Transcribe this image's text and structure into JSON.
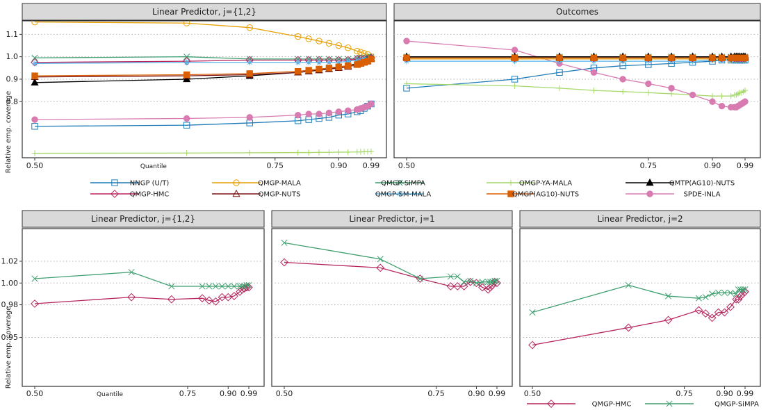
{
  "colors": {
    "NNGP": "#1f7bb8",
    "MALA": "#e69f00",
    "SiMPA": "#3f9f6f",
    "YAMALA": "#a6d96a",
    "QMTP": "#000000",
    "HMC": "#b5245c",
    "NUTS": "#7a1010",
    "SMMALA": "#56b4e9",
    "AG10NUTS": "#d95f02",
    "SPDE": "#d87bb0"
  },
  "chart_data": [
    {
      "type": "line",
      "title": "Linear Predictor, j={1,2}",
      "ylabel": "Relative emp. coverage",
      "xlabel": "Quantile",
      "x_ticks": [
        "0.50",
        "0.75",
        "0.90",
        "0.99"
      ],
      "y_ticks": [
        "0.8",
        "0.9",
        "1.0",
        "1.1"
      ],
      "ylim": [
        0.55,
        1.16
      ],
      "scale": "sqrt-quantile",
      "x": [
        0.5,
        0.6,
        0.7,
        0.8,
        0.825,
        0.85,
        0.875,
        0.9,
        0.925,
        0.95,
        0.96,
        0.97,
        0.98,
        0.99
      ],
      "series": [
        {
          "name": "NNGP (U/T)",
          "key": "NNGP",
          "marker": "square",
          "values": [
            0.69,
            0.695,
            0.705,
            0.715,
            0.72,
            0.725,
            0.73,
            0.74,
            0.745,
            0.755,
            0.76,
            0.77,
            0.78,
            0.79
          ]
        },
        {
          "name": "QMGP-MALA",
          "key": "MALA",
          "marker": "circle",
          "values": [
            1.155,
            1.15,
            1.13,
            1.09,
            1.08,
            1.07,
            1.06,
            1.05,
            1.04,
            1.025,
            1.02,
            1.015,
            1.01,
            1.0
          ]
        },
        {
          "name": "QMGP-SiMPA",
          "key": "SiMPA",
          "marker": "x",
          "values": [
            0.995,
            1.0,
            0.99,
            0.99,
            0.99,
            0.99,
            0.99,
            0.99,
            0.99,
            0.995,
            0.995,
            0.995,
            1.0,
            1.0
          ]
        },
        {
          "name": "QMGP-YA-MALA",
          "key": "YAMALA",
          "marker": "plus",
          "values": [
            0.57,
            0.571,
            0.572,
            0.573,
            0.573,
            0.574,
            0.574,
            0.575,
            0.575,
            0.576,
            0.576,
            0.577,
            0.577,
            0.578
          ]
        },
        {
          "name": "QMTP(AG10)-NUTS",
          "key": "QMTP",
          "marker": "triangle-filled",
          "values": [
            0.885,
            0.9,
            0.915,
            0.93,
            0.935,
            0.94,
            0.945,
            0.955,
            0.96,
            0.97,
            0.975,
            0.98,
            0.99,
            0.995
          ]
        },
        {
          "name": "QMGP-HMC",
          "key": "HMC",
          "marker": "diamond",
          "values": [
            0.975,
            0.98,
            0.985,
            0.985,
            0.985,
            0.985,
            0.985,
            0.985,
            0.985,
            0.99,
            0.99,
            0.99,
            0.99,
            0.995
          ]
        },
        {
          "name": "QMGP-NUTS",
          "key": "NUTS",
          "marker": "triangle",
          "values": [
            0.91,
            0.915,
            0.92,
            0.93,
            0.935,
            0.94,
            0.945,
            0.95,
            0.955,
            0.965,
            0.97,
            0.975,
            0.98,
            0.99
          ]
        },
        {
          "name": "QMGP-SM-MALA",
          "key": "SMMALA",
          "marker": "asterisk",
          "values": [
            0.97,
            0.975,
            0.975,
            0.975,
            0.975,
            0.975,
            0.975,
            0.975,
            0.98,
            0.985,
            0.985,
            0.99,
            0.99,
            0.995
          ]
        },
        {
          "name": "QMGP(AG10)-NUTS",
          "key": "AG10NUTS",
          "marker": "square-filled",
          "values": [
            0.915,
            0.92,
            0.925,
            0.935,
            0.94,
            0.945,
            0.95,
            0.955,
            0.96,
            0.965,
            0.97,
            0.975,
            0.98,
            0.99
          ]
        },
        {
          "name": "SPDE-INLA",
          "key": "SPDE",
          "marker": "circle-filled",
          "values": [
            0.72,
            0.725,
            0.73,
            0.74,
            0.745,
            0.745,
            0.75,
            0.755,
            0.76,
            0.765,
            0.77,
            0.775,
            0.78,
            0.79
          ]
        }
      ]
    },
    {
      "type": "line",
      "title": "Outcomes",
      "x_ticks": [
        "0.50",
        "0.75",
        "0.90",
        "0.99"
      ],
      "ylim": [
        0.55,
        1.16
      ],
      "scale": "sqrt-quantile",
      "x": [
        0.5,
        0.55,
        0.6,
        0.65,
        0.7,
        0.75,
        0.8,
        0.85,
        0.9,
        0.925,
        0.95,
        0.96,
        0.965,
        0.97,
        0.975,
        0.98,
        0.985,
        0.99
      ],
      "series": [
        {
          "name": "NNGP (U/T)",
          "key": "NNGP",
          "marker": "square",
          "values": [
            0.86,
            0.9,
            0.93,
            0.95,
            0.96,
            0.965,
            0.97,
            0.975,
            0.98,
            0.985,
            0.985,
            0.985,
            0.985,
            0.985,
            0.985,
            0.985,
            0.985,
            0.985
          ]
        },
        {
          "name": "QMGP-YA-MALA",
          "key": "YAMALA",
          "marker": "plus",
          "values": [
            0.88,
            0.87,
            0.86,
            0.85,
            0.845,
            0.84,
            0.835,
            0.83,
            0.825,
            0.825,
            0.825,
            0.83,
            0.83,
            0.835,
            0.84,
            0.84,
            0.845,
            0.85
          ]
        },
        {
          "name": "SPDE-INLA",
          "key": "SPDE",
          "marker": "circle-filled",
          "values": [
            1.07,
            1.03,
            0.97,
            0.93,
            0.9,
            0.88,
            0.86,
            0.83,
            0.8,
            0.78,
            0.775,
            0.775,
            0.775,
            0.78,
            0.785,
            0.79,
            0.795,
            0.8
          ]
        },
        {
          "name": "QMGP-MALA",
          "key": "MALA",
          "marker": "circle",
          "values": [
            0.99,
            0.99,
            0.99,
            0.99,
            0.99,
            0.99,
            0.99,
            0.99,
            0.99,
            0.99,
            0.99,
            0.99,
            0.99,
            0.99,
            0.99,
            0.99,
            0.99,
            0.99
          ]
        },
        {
          "name": "QMGP-SM-MALA",
          "key": "SMMALA",
          "marker": "asterisk",
          "values": [
            0.98,
            0.98,
            0.98,
            0.98,
            0.98,
            0.98,
            0.98,
            0.98,
            0.985,
            0.985,
            0.985,
            0.985,
            0.985,
            0.985,
            0.985,
            0.985,
            0.985,
            0.985
          ]
        },
        {
          "name": "QMGP-SiMPA",
          "key": "SiMPA",
          "marker": "x",
          "values": [
            1.0,
            1.0,
            1.0,
            1.0,
            1.0,
            1.0,
            1.0,
            1.0,
            1.0,
            1.0,
            1.0,
            1.0,
            1.0,
            1.0,
            1.0,
            1.0,
            1.0,
            1.0
          ]
        },
        {
          "name": "QMGP-HMC",
          "key": "HMC",
          "marker": "diamond",
          "values": [
            0.995,
            0.995,
            0.995,
            0.995,
            0.995,
            0.995,
            0.995,
            0.995,
            0.995,
            0.995,
            0.995,
            0.995,
            0.995,
            0.995,
            0.995,
            0.995,
            0.995,
            0.995
          ]
        },
        {
          "name": "QMGP-NUTS",
          "key": "NUTS",
          "marker": "triangle",
          "values": [
            0.995,
            0.995,
            0.995,
            0.995,
            0.995,
            0.995,
            0.995,
            0.995,
            0.995,
            0.995,
            0.995,
            0.995,
            0.995,
            0.995,
            0.995,
            0.995,
            0.995,
            0.995
          ]
        },
        {
          "name": "QMTP(AG10)-NUTS",
          "key": "QMTP",
          "marker": "triangle-filled",
          "values": [
            1.0,
            1.0,
            1.0,
            1.0,
            1.0,
            1.0,
            1.0,
            1.0,
            1.0,
            1.0,
            1.0,
            1.0,
            1.0,
            1.0,
            1.0,
            1.0,
            1.0,
            1.0
          ]
        },
        {
          "name": "QMGP(AG10)-NUTS",
          "key": "AG10NUTS",
          "marker": "square-filled",
          "values": [
            0.995,
            0.995,
            0.995,
            0.995,
            0.995,
            0.995,
            0.995,
            0.995,
            0.995,
            0.995,
            0.995,
            0.995,
            0.995,
            0.995,
            0.995,
            0.995,
            0.995,
            0.995
          ]
        }
      ]
    },
    {
      "type": "line",
      "title": "Linear Predictor, j={1,2}",
      "ylabel": "Relative emp. coverage",
      "xlabel": "Quantile",
      "x_ticks": [
        "0.50",
        "0.75",
        "0.90",
        "0.99"
      ],
      "y_ticks": [
        "0.95",
        "0.98",
        "1.00",
        "1.02"
      ],
      "ylim": [
        0.905,
        1.05
      ],
      "scale": "sqrt-quantile",
      "x": [
        0.5,
        0.6,
        0.7,
        0.8,
        0.825,
        0.85,
        0.875,
        0.9,
        0.925,
        0.95,
        0.96,
        0.97,
        0.98,
        0.99
      ],
      "series": [
        {
          "name": "QMGP-HMC",
          "key": "HMC",
          "marker": "diamond",
          "values": [
            0.981,
            0.987,
            0.985,
            0.986,
            0.984,
            0.983,
            0.987,
            0.987,
            0.988,
            0.992,
            0.994,
            0.995,
            0.996,
            0.996
          ]
        },
        {
          "name": "QMGP-SiMPA",
          "key": "SiMPA",
          "marker": "x",
          "values": [
            1.004,
            1.01,
            0.997,
            0.997,
            0.997,
            0.997,
            0.997,
            0.997,
            0.997,
            0.997,
            0.997,
            0.997,
            0.998,
            0.998
          ]
        }
      ]
    },
    {
      "type": "line",
      "title": "Linear Predictor, j=1",
      "x_ticks": [
        "0.50",
        "0.75",
        "0.90",
        "0.99"
      ],
      "ylim": [
        0.905,
        1.05
      ],
      "scale": "sqrt-quantile",
      "x": [
        0.5,
        0.6,
        0.7,
        0.8,
        0.825,
        0.85,
        0.875,
        0.9,
        0.925,
        0.95,
        0.96,
        0.97,
        0.98,
        0.99
      ],
      "series": [
        {
          "name": "QMGP-HMC",
          "key": "HMC",
          "marker": "diamond",
          "values": [
            1.019,
            1.014,
            1.004,
            0.997,
            0.997,
            0.997,
            1.001,
            1.0,
            0.996,
            0.994,
            0.996,
            0.998,
            1.001,
            1.0
          ]
        },
        {
          "name": "QMGP-SiMPA",
          "key": "SiMPA",
          "marker": "x",
          "values": [
            1.037,
            1.022,
            1.004,
            1.006,
            1.006,
            1.001,
            1.002,
            1.0,
            1.001,
            1.001,
            1.001,
            1.001,
            1.002,
            1.002
          ]
        }
      ]
    },
    {
      "type": "line",
      "title": "Linear Predictor, j=2",
      "x_ticks": [
        "0.50",
        "0.75",
        "0.90",
        "0.99"
      ],
      "ylim": [
        0.905,
        1.05
      ],
      "scale": "sqrt-quantile",
      "x": [
        0.5,
        0.6,
        0.7,
        0.8,
        0.825,
        0.85,
        0.875,
        0.9,
        0.925,
        0.95,
        0.96,
        0.97,
        0.98,
        0.99
      ],
      "series": [
        {
          "name": "QMGP-HMC",
          "key": "HMC",
          "marker": "diamond",
          "values": [
            0.943,
            0.959,
            0.966,
            0.975,
            0.972,
            0.968,
            0.973,
            0.973,
            0.978,
            0.985,
            0.985,
            0.988,
            0.99,
            0.992
          ]
        },
        {
          "name": "QMGP-SiMPA",
          "key": "SiMPA",
          "marker": "x",
          "values": [
            0.973,
            0.998,
            0.988,
            0.986,
            0.987,
            0.99,
            0.991,
            0.991,
            0.991,
            0.99,
            0.994,
            0.994,
            0.994,
            0.994
          ]
        }
      ]
    }
  ],
  "legend_top": [
    "NNGP (U/T)",
    "QMGP-MALA",
    "QMGP-SiMPA",
    "QMGP-YA-MALA",
    "QMTP(AG10)-NUTS",
    "QMGP-HMC",
    "QMGP-NUTS",
    "QMGP-SM-MALA",
    "QMGP(AG10)-NUTS",
    "SPDE-INLA"
  ],
  "legend_bottom": [
    "QMGP-HMC",
    "QMGP-SiMPA"
  ]
}
